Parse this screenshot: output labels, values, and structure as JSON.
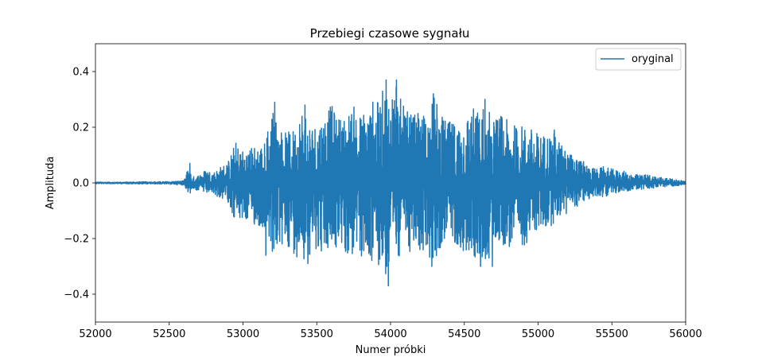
{
  "chart_data": {
    "type": "line",
    "title": "Przebiegi czasowe sygnału",
    "xlabel": "Numer próbki",
    "ylabel": "Amplituda",
    "xlim": [
      52000,
      56000
    ],
    "ylim": [
      -0.5,
      0.5
    ],
    "xticks": [
      52000,
      52500,
      53000,
      53500,
      54000,
      54500,
      55000,
      55500,
      56000
    ],
    "xtick_labels": [
      "52000",
      "52500",
      "53000",
      "53500",
      "54000",
      "54500",
      "55000",
      "55500",
      "56000"
    ],
    "yticks": [
      -0.4,
      -0.2,
      0.0,
      0.2,
      0.4
    ],
    "ytick_labels": [
      "−0.4",
      "−0.2",
      "0.0",
      "0.2",
      "0.4"
    ],
    "grid": false,
    "legend_position": "top-right",
    "colors": {
      "series": "#1f77b4"
    },
    "series": [
      {
        "name": "oryginal",
        "envelope": {
          "x": [
            52000,
            52100,
            52200,
            52300,
            52400,
            52500,
            52600,
            52640,
            52650,
            52700,
            52750,
            52800,
            52850,
            52900,
            52950,
            53000,
            53100,
            53150,
            53200,
            53250,
            53300,
            53350,
            53400,
            53450,
            53500,
            53550,
            53600,
            53650,
            53700,
            53750,
            53800,
            53850,
            53900,
            53950,
            53980,
            54000,
            54030,
            54050,
            54100,
            54150,
            54200,
            54250,
            54300,
            54350,
            54400,
            54450,
            54500,
            54550,
            54600,
            54650,
            54700,
            54750,
            54800,
            54850,
            54900,
            54950,
            55000,
            55050,
            55100,
            55150,
            55200,
            55250,
            55300,
            55350,
            55400,
            55450,
            55500,
            55550,
            55600,
            55650,
            55700,
            55750,
            55800,
            55850,
            55900,
            55950,
            56000
          ],
          "upper": [
            0.003,
            0.003,
            0.003,
            0.004,
            0.004,
            0.005,
            0.008,
            0.07,
            0.02,
            0.03,
            0.05,
            0.04,
            0.06,
            0.08,
            0.15,
            0.12,
            0.14,
            0.15,
            0.29,
            0.2,
            0.18,
            0.2,
            0.28,
            0.22,
            0.22,
            0.26,
            0.28,
            0.24,
            0.25,
            0.28,
            0.25,
            0.3,
            0.28,
            0.34,
            0.37,
            0.34,
            0.37,
            0.33,
            0.26,
            0.25,
            0.25,
            0.26,
            0.32,
            0.24,
            0.22,
            0.22,
            0.24,
            0.28,
            0.26,
            0.3,
            0.23,
            0.25,
            0.22,
            0.21,
            0.21,
            0.2,
            0.18,
            0.18,
            0.19,
            0.15,
            0.11,
            0.1,
            0.08,
            0.06,
            0.05,
            0.06,
            0.05,
            0.045,
            0.04,
            0.03,
            0.03,
            0.03,
            0.025,
            0.02,
            0.015,
            0.01,
            0.008
          ],
          "lower": [
            -0.003,
            -0.003,
            -0.003,
            -0.004,
            -0.004,
            -0.005,
            -0.008,
            -0.05,
            -0.02,
            -0.03,
            -0.04,
            -0.04,
            -0.06,
            -0.07,
            -0.15,
            -0.14,
            -0.16,
            -0.17,
            -0.26,
            -0.25,
            -0.23,
            -0.26,
            -0.28,
            -0.26,
            -0.24,
            -0.26,
            -0.25,
            -0.24,
            -0.26,
            -0.28,
            -0.27,
            -0.3,
            -0.28,
            -0.32,
            -0.37,
            -0.33,
            -0.3,
            -0.28,
            -0.24,
            -0.26,
            -0.26,
            -0.26,
            -0.3,
            -0.22,
            -0.22,
            -0.22,
            -0.26,
            -0.28,
            -0.27,
            -0.3,
            -0.22,
            -0.22,
            -0.24,
            -0.23,
            -0.23,
            -0.2,
            -0.17,
            -0.17,
            -0.15,
            -0.12,
            -0.12,
            -0.09,
            -0.07,
            -0.06,
            -0.05,
            -0.05,
            -0.04,
            -0.035,
            -0.03,
            -0.025,
            -0.025,
            -0.02,
            -0.02,
            -0.015,
            -0.012,
            -0.01,
            -0.008
          ]
        },
        "peaks": [
          {
            "x": 52640,
            "y": 0.07
          },
          {
            "x": 53215,
            "y": 0.29
          },
          {
            "x": 53155,
            "y": -0.26
          },
          {
            "x": 53420,
            "y": 0.28
          },
          {
            "x": 53440,
            "y": -0.29
          },
          {
            "x": 53880,
            "y": 0.29
          },
          {
            "x": 53970,
            "y": 0.37
          },
          {
            "x": 53985,
            "y": -0.37
          },
          {
            "x": 54040,
            "y": 0.37
          },
          {
            "x": 54280,
            "y": -0.3
          },
          {
            "x": 54290,
            "y": 0.32
          },
          {
            "x": 54640,
            "y": 0.3
          },
          {
            "x": 54610,
            "y": -0.3
          },
          {
            "x": 54690,
            "y": -0.3
          },
          {
            "x": 55110,
            "y": 0.19
          }
        ]
      }
    ]
  }
}
